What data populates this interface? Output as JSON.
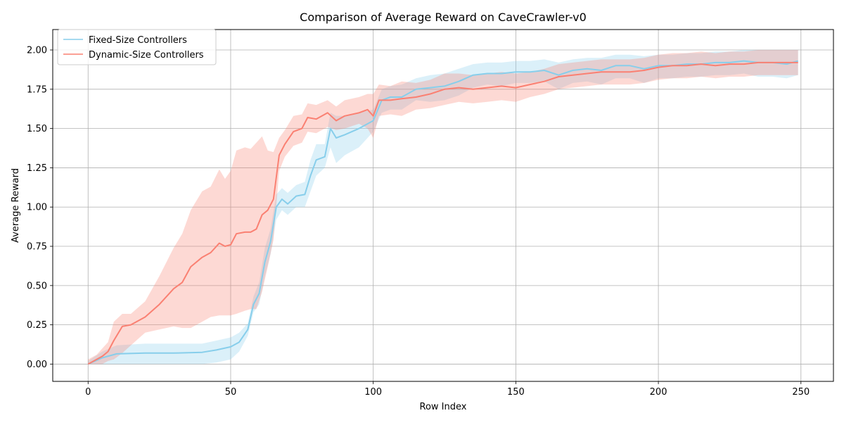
{
  "chart_data": {
    "type": "line",
    "title": "Comparison of Average Reward on CaveCrawler-v0",
    "xlabel": "Row Index",
    "ylabel": "Average Reward",
    "xlim": [
      -12.4,
      261.4
    ],
    "ylim": [
      -0.11,
      2.13
    ],
    "xticks": [
      0,
      50,
      100,
      150,
      200,
      250
    ],
    "yticks": [
      0.0,
      0.25,
      0.5,
      0.75,
      1.0,
      1.25,
      1.5,
      1.75,
      2.0
    ],
    "xtick_labels": [
      "0",
      "50",
      "100",
      "150",
      "200",
      "250"
    ],
    "ytick_labels": [
      "0.00",
      "0.25",
      "0.50",
      "0.75",
      "1.00",
      "1.25",
      "1.50",
      "1.75",
      "2.00"
    ],
    "grid": true,
    "legend_position": "top-left",
    "series": [
      {
        "name": "Fixed-Size Controllers",
        "color": "#87ceeb",
        "x": [
          0,
          5,
          10,
          20,
          30,
          40,
          45,
          50,
          53,
          56,
          58,
          60,
          62,
          64,
          66,
          68,
          70,
          73,
          76,
          78,
          80,
          83,
          85,
          87,
          90,
          95,
          100,
          103,
          106,
          110,
          115,
          120,
          125,
          130,
          135,
          140,
          145,
          150,
          155,
          160,
          165,
          170,
          175,
          180,
          185,
          190,
          195,
          200,
          205,
          210,
          215,
          220,
          225,
          230,
          235,
          240,
          245,
          249
        ],
        "y": [
          0.0,
          0.04,
          0.065,
          0.07,
          0.07,
          0.075,
          0.09,
          0.11,
          0.14,
          0.22,
          0.38,
          0.45,
          0.65,
          0.78,
          1.0,
          1.05,
          1.02,
          1.07,
          1.08,
          1.2,
          1.3,
          1.32,
          1.5,
          1.44,
          1.46,
          1.5,
          1.55,
          1.68,
          1.7,
          1.7,
          1.75,
          1.76,
          1.77,
          1.8,
          1.84,
          1.85,
          1.85,
          1.86,
          1.86,
          1.87,
          1.84,
          1.87,
          1.88,
          1.87,
          1.9,
          1.9,
          1.88,
          1.9,
          1.9,
          1.91,
          1.91,
          1.92,
          1.92,
          1.93,
          1.92,
          1.92,
          1.91,
          1.93
        ],
        "y_lower": [
          0.0,
          0.0,
          0.0,
          0.0,
          0.0,
          0.0,
          0.01,
          0.03,
          0.08,
          0.18,
          0.33,
          0.38,
          0.56,
          0.7,
          0.92,
          0.98,
          0.95,
          1.0,
          1.0,
          1.1,
          1.2,
          1.25,
          1.38,
          1.28,
          1.33,
          1.38,
          1.48,
          1.6,
          1.62,
          1.62,
          1.68,
          1.67,
          1.68,
          1.71,
          1.76,
          1.78,
          1.77,
          1.79,
          1.79,
          1.8,
          1.75,
          1.79,
          1.8,
          1.78,
          1.82,
          1.82,
          1.79,
          1.82,
          1.82,
          1.83,
          1.83,
          1.84,
          1.84,
          1.85,
          1.83,
          1.83,
          1.82,
          1.84
        ],
        "y_upper": [
          0.02,
          0.08,
          0.12,
          0.13,
          0.13,
          0.13,
          0.15,
          0.17,
          0.2,
          0.26,
          0.43,
          0.52,
          0.74,
          0.86,
          1.08,
          1.12,
          1.09,
          1.14,
          1.16,
          1.3,
          1.4,
          1.4,
          1.6,
          1.58,
          1.58,
          1.6,
          1.62,
          1.75,
          1.77,
          1.78,
          1.82,
          1.84,
          1.85,
          1.88,
          1.91,
          1.92,
          1.92,
          1.93,
          1.93,
          1.94,
          1.92,
          1.94,
          1.95,
          1.95,
          1.97,
          1.97,
          1.96,
          1.97,
          1.97,
          1.98,
          1.98,
          1.99,
          1.99,
          2.0,
          2.0,
          2.0,
          2.0,
          2.0
        ]
      },
      {
        "name": "Dynamic-Size Controllers",
        "color": "#fa8072",
        "x": [
          0,
          3,
          5,
          7,
          9,
          12,
          15,
          20,
          25,
          30,
          33,
          36,
          40,
          43,
          46,
          48,
          50,
          52,
          55,
          57,
          59,
          61,
          63,
          65,
          67,
          69,
          72,
          75,
          77,
          80,
          84,
          87,
          90,
          95,
          98,
          100,
          102,
          106,
          110,
          115,
          120,
          125,
          130,
          135,
          140,
          145,
          150,
          155,
          160,
          165,
          170,
          175,
          180,
          185,
          190,
          195,
          200,
          205,
          210,
          215,
          220,
          225,
          230,
          235,
          240,
          245,
          249
        ],
        "y": [
          0.0,
          0.03,
          0.05,
          0.08,
          0.15,
          0.24,
          0.25,
          0.3,
          0.38,
          0.48,
          0.52,
          0.62,
          0.68,
          0.71,
          0.77,
          0.75,
          0.76,
          0.83,
          0.84,
          0.84,
          0.86,
          0.95,
          0.98,
          1.05,
          1.33,
          1.4,
          1.48,
          1.5,
          1.57,
          1.56,
          1.6,
          1.55,
          1.58,
          1.6,
          1.62,
          1.58,
          1.68,
          1.68,
          1.69,
          1.7,
          1.72,
          1.75,
          1.76,
          1.75,
          1.76,
          1.77,
          1.76,
          1.78,
          1.8,
          1.83,
          1.84,
          1.85,
          1.86,
          1.86,
          1.86,
          1.87,
          1.89,
          1.9,
          1.9,
          1.91,
          1.9,
          1.91,
          1.91,
          1.92,
          1.92,
          1.92,
          1.92
        ],
        "y_lower": [
          0.0,
          0.0,
          0.0,
          0.02,
          0.03,
          0.07,
          0.12,
          0.2,
          0.22,
          0.24,
          0.23,
          0.23,
          0.27,
          0.3,
          0.31,
          0.31,
          0.31,
          0.32,
          0.34,
          0.35,
          0.35,
          0.46,
          0.62,
          0.79,
          1.23,
          1.32,
          1.39,
          1.41,
          1.48,
          1.47,
          1.51,
          1.49,
          1.5,
          1.53,
          1.5,
          1.44,
          1.58,
          1.59,
          1.58,
          1.62,
          1.63,
          1.65,
          1.67,
          1.66,
          1.67,
          1.68,
          1.67,
          1.7,
          1.72,
          1.75,
          1.76,
          1.77,
          1.78,
          1.78,
          1.78,
          1.79,
          1.81,
          1.82,
          1.82,
          1.83,
          1.82,
          1.83,
          1.83,
          1.84,
          1.84,
          1.84,
          1.84
        ],
        "y_upper": [
          0.03,
          0.06,
          0.1,
          0.14,
          0.27,
          0.32,
          0.32,
          0.4,
          0.56,
          0.74,
          0.83,
          0.98,
          1.1,
          1.13,
          1.24,
          1.18,
          1.23,
          1.36,
          1.38,
          1.37,
          1.41,
          1.45,
          1.36,
          1.35,
          1.44,
          1.49,
          1.58,
          1.59,
          1.66,
          1.65,
          1.68,
          1.64,
          1.68,
          1.7,
          1.72,
          1.72,
          1.78,
          1.77,
          1.8,
          1.79,
          1.81,
          1.85,
          1.85,
          1.84,
          1.85,
          1.86,
          1.85,
          1.86,
          1.88,
          1.91,
          1.92,
          1.93,
          1.94,
          1.94,
          1.94,
          1.95,
          1.97,
          1.98,
          1.98,
          1.99,
          1.98,
          1.99,
          1.99,
          2.0,
          2.0,
          2.0,
          2.0
        ]
      }
    ]
  }
}
